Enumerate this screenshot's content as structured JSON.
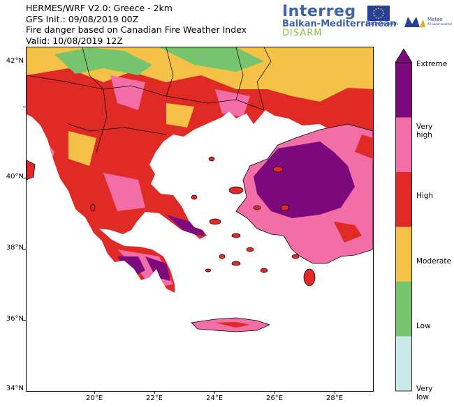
{
  "header": {
    "line1": "HERMES/WRF V2.0: Greece - 2km",
    "line2": "GFS Init.: 09/08/2019 00Z",
    "line3": "Fire danger based on Canadian Fire Weather Index",
    "line4": "Valid: 10/08/2019 12Z"
  },
  "logos": {
    "interreg_name": "Interreg",
    "interreg_sub": "Balkan-Mediterranean",
    "interreg_project": "DISARM",
    "eu_label": "EUROPEAN UNION",
    "meteo_name": "Meteo",
    "meteo_tagline": "All about weather"
  },
  "axes": {
    "y_ticks": [
      "42°N",
      "40°N",
      "38°N",
      "36°N",
      "34°N"
    ],
    "x_ticks": [
      "20°E",
      "22°E",
      "24°E",
      "26°E",
      "28°E"
    ]
  },
  "colorbar": {
    "levels": [
      {
        "label": "Very low",
        "color": "#cce9e9"
      },
      {
        "label": "Low",
        "color": "#77c46e"
      },
      {
        "label": "Moderate",
        "color": "#f6c147"
      },
      {
        "label": "High",
        "color": "#df2a26"
      },
      {
        "label": "Very high",
        "color": "#f26ea6"
      },
      {
        "label": "Extreme",
        "color": "#7c0a7c"
      }
    ]
  },
  "colors": {
    "sea": "#ffffff",
    "coastline": "#000000"
  }
}
